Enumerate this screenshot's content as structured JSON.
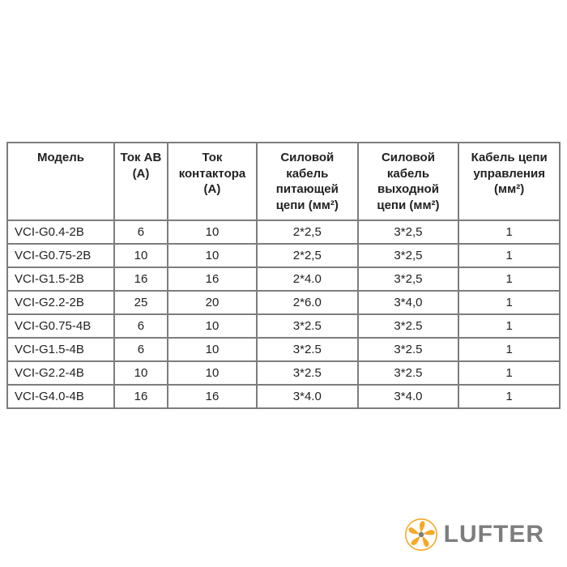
{
  "table": {
    "columns": [
      {
        "key": "model",
        "label": "Модель",
        "widthClass": "col-model",
        "align": "left"
      },
      {
        "key": "ab",
        "label": "Ток АВ (А)",
        "widthClass": "col-ab",
        "align": "center"
      },
      {
        "key": "contactor",
        "label": "Ток контактора (А)",
        "widthClass": "col-cont",
        "align": "center"
      },
      {
        "key": "power_in",
        "label": "Силовой кабель питающей цепи (мм²)",
        "widthClass": "col-pwr1",
        "align": "center"
      },
      {
        "key": "power_out",
        "label": "Силовой кабель выходной цепи (мм²)",
        "widthClass": "col-pwr2",
        "align": "center"
      },
      {
        "key": "control",
        "label": "Кабель цепи управления (мм²)",
        "widthClass": "col-ctrl",
        "align": "center"
      }
    ],
    "rows": [
      [
        "VCI-G0.4-2B",
        "6",
        "10",
        "2*2,5",
        "3*2,5",
        "1"
      ],
      [
        "VCI-G0.75-2B",
        "10",
        "10",
        "2*2,5",
        "3*2,5",
        "1"
      ],
      [
        "VCI-G1.5-2B",
        "16",
        "16",
        "2*4.0",
        "3*2,5",
        "1"
      ],
      [
        "VCI-G2.2-2B",
        "25",
        "20",
        "2*6.0",
        "3*4,0",
        "1"
      ],
      [
        "VCI-G0.75-4B",
        "6",
        "10",
        "3*2.5",
        "3*2.5",
        "1"
      ],
      [
        "VCI-G1.5-4B",
        "6",
        "10",
        "3*2.5",
        "3*2.5",
        "1"
      ],
      [
        "VCI-G2.2-4B",
        "10",
        "10",
        "3*2.5",
        "3*2.5",
        "1"
      ],
      [
        "VCI-G4.0-4B",
        "16",
        "16",
        "3*4.0",
        "3*4.0",
        "1"
      ]
    ],
    "border_color": "#7d7d7d",
    "text_color": "#222222",
    "header_fontsize": 15,
    "cell_fontsize": 15,
    "background_color": "#ffffff"
  },
  "logo": {
    "text": "LUFTER",
    "text_color": "#7d7d7d",
    "icon_outer_color": "#f4a926",
    "icon_inner_color": "#7d7d7d",
    "fontsize": 30
  }
}
